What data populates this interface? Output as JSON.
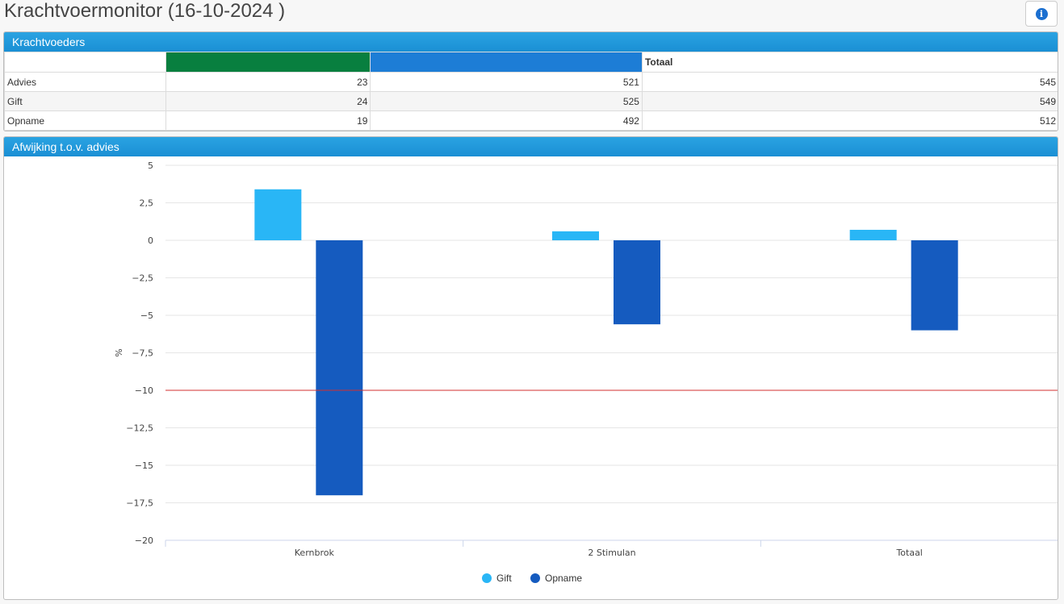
{
  "page": {
    "title": "Krachtvoermonitor (16-10-2024 )"
  },
  "info_button": {
    "icon": "info-icon",
    "glyph": "i"
  },
  "krachtvoeders": {
    "title": "Krachtvoeders",
    "columns": [
      "",
      "",
      "",
      "Totaal"
    ],
    "column_colors": [
      "#ffffff",
      "#087f3f",
      "#1d7dd6",
      "#ffffff"
    ],
    "rows": [
      {
        "label": "Advies",
        "values": [
          "23",
          "521",
          "545"
        ]
      },
      {
        "label": "Gift",
        "values": [
          "24",
          "525",
          "549"
        ]
      },
      {
        "label": "Opname",
        "values": [
          "19",
          "492",
          "512"
        ]
      }
    ]
  },
  "afwijking": {
    "title": "Afwijking t.o.v. advies",
    "chart_data": {
      "type": "bar",
      "title": "",
      "xlabel": "",
      "ylabel": "%",
      "categories": [
        "Kernbrok",
        "2 Stimulan",
        "Totaal"
      ],
      "series": [
        {
          "name": "Gift",
          "color": "#29b6f6",
          "values": [
            3.4,
            0.6,
            0.7
          ]
        },
        {
          "name": "Opname",
          "color": "#155bbf",
          "values": [
            -17.0,
            -5.6,
            -6.0
          ]
        }
      ],
      "ylim": [
        -20,
        5
      ],
      "yticks": [
        5,
        2.5,
        0,
        -2.5,
        -5,
        -7.5,
        -10,
        -12.5,
        -15,
        -17.5,
        -20
      ],
      "ytick_labels": [
        "5",
        "2,5",
        "0",
        "−2,5",
        "−5",
        "−7,5",
        "−10",
        "−12,5",
        "−15",
        "−17,5",
        "−20"
      ],
      "reference_line": {
        "value": -10,
        "color": "#d32f2f"
      },
      "grid": true,
      "legend": "bottom-center"
    }
  }
}
